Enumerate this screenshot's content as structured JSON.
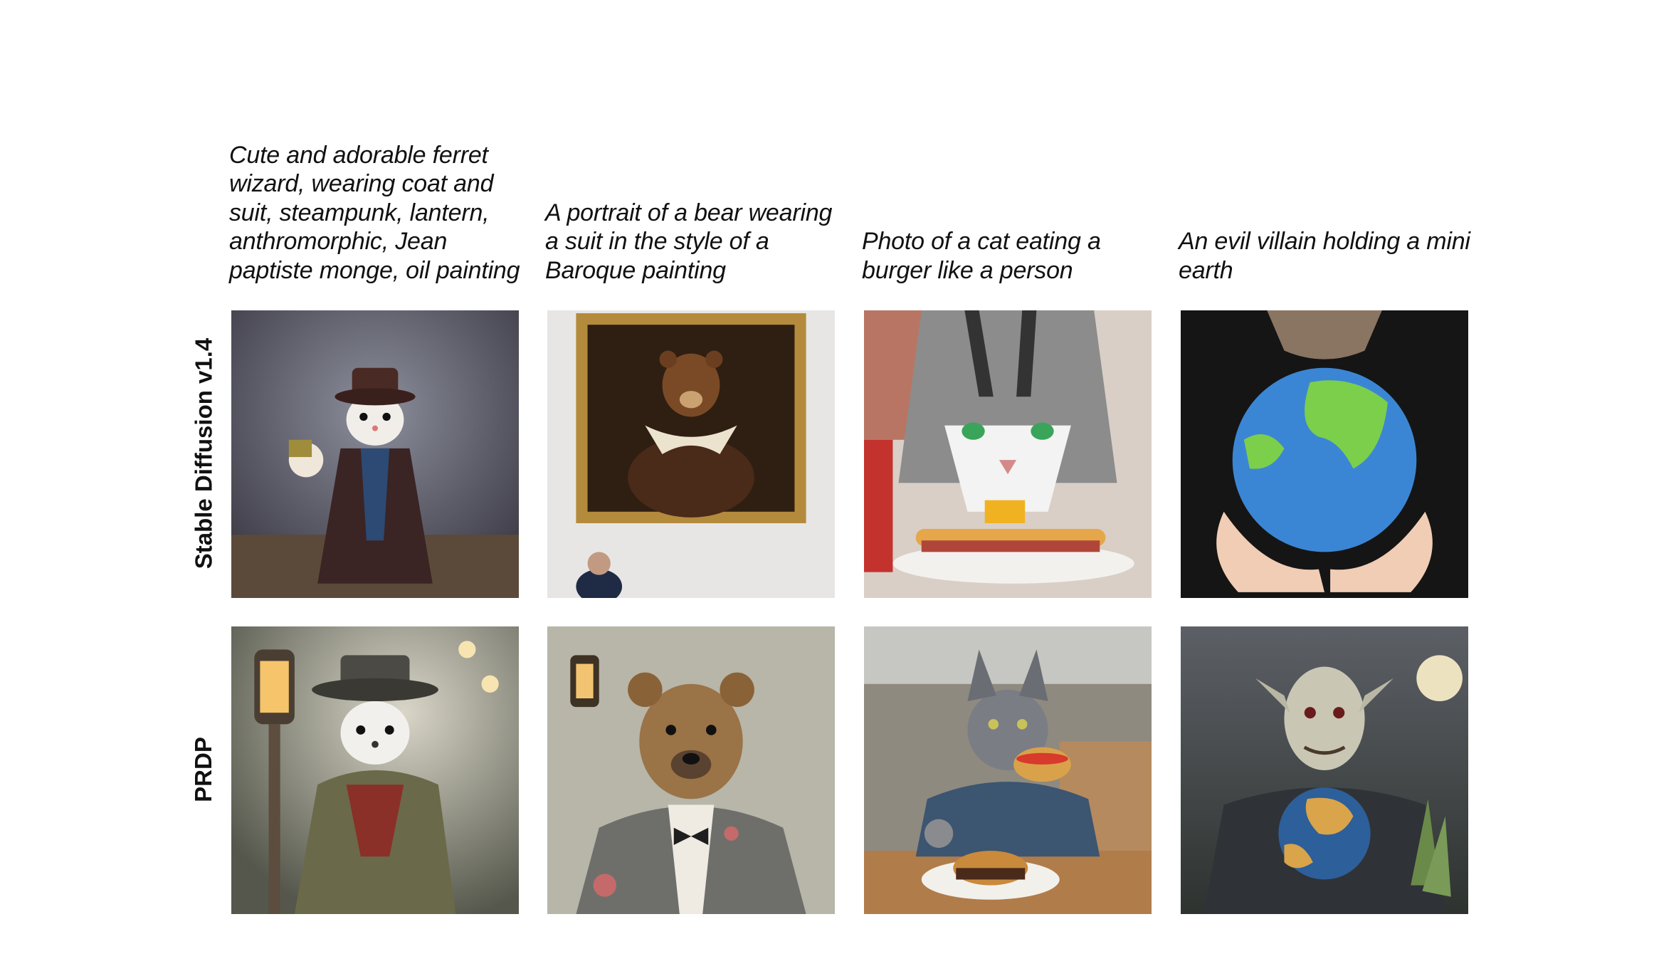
{
  "prompts": [
    "Cute and adorable ferret wizard, wearing coat and suit, steampunk, lantern, anthromorphic, Jean paptiste monge, oil painting",
    "A portrait of a bear wearing a suit in the style of a Baroque painting",
    "Photo of a cat eating a burger like a person",
    "An evil villain holding a mini earth"
  ],
  "rows": [
    {
      "label": "Stable Diffusion v1.4"
    },
    {
      "label": "PRDP"
    }
  ],
  "images": [
    [
      "ferret-wizard-image",
      "bear-portrait-frame-image",
      "cat-burger-closeup-image",
      "hands-holding-globe-image"
    ],
    [
      "ferret-steampunk-image",
      "bear-suit-image",
      "cat-eating-burger-image",
      "villain-globe-image"
    ]
  ]
}
